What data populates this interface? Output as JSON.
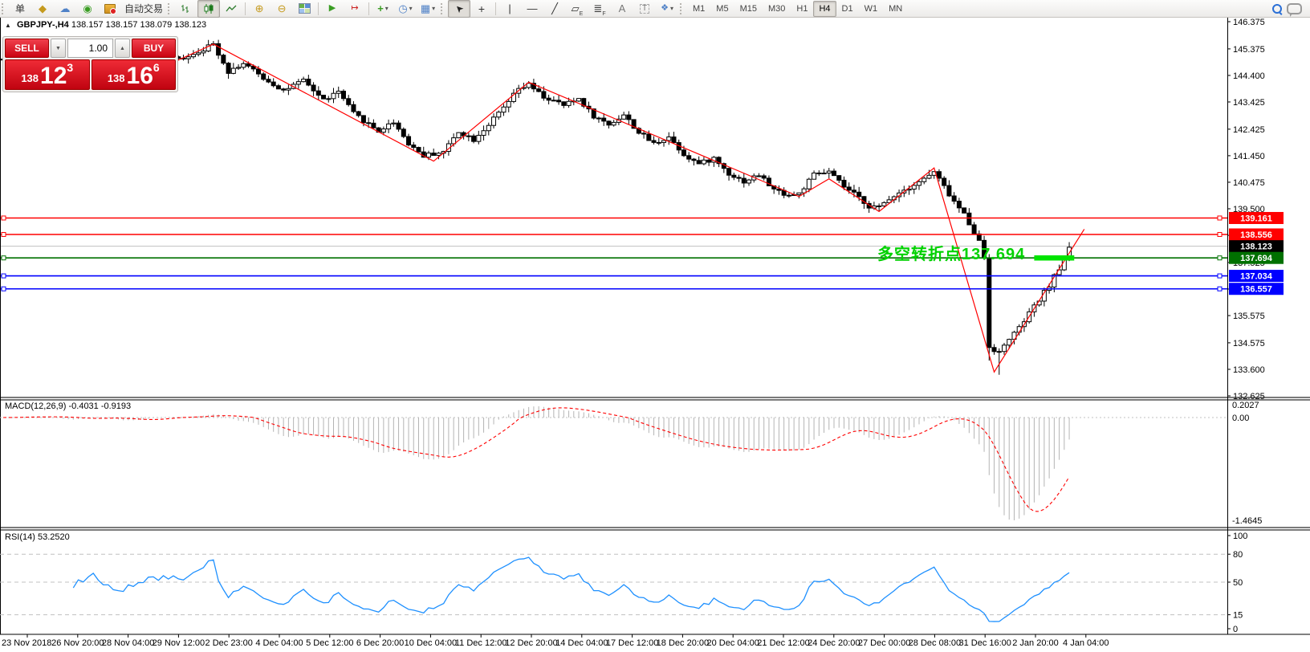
{
  "toolbar": {
    "new_order_label": "单",
    "autotrading_label": "自动交易",
    "timeframes": [
      "M1",
      "M5",
      "M15",
      "M30",
      "H1",
      "H4",
      "D1",
      "W1",
      "MN"
    ],
    "active_timeframe": "H4",
    "icon_glyphs": {
      "metaeditor": "◆",
      "chart_window": "☁",
      "signals": "◉",
      "zoom_in": "⊕",
      "zoom_out": "⊖",
      "autoscroll": "▶",
      "chart_shift": "↦",
      "indicators": "+",
      "periods": "◷",
      "templates": "▦",
      "cursor": "➤",
      "crosshair": "+",
      "vline": "|",
      "hline": "—",
      "trend": "╱",
      "channel": "▱",
      "channel_sub": "E",
      "fib": "≣",
      "fib_sub": "F",
      "text": "A",
      "text_label": "T",
      "shapes": "❖",
      "dropdown": "▾",
      "spin_up": "▲",
      "spin_down": "▼",
      "collapse": "▲"
    }
  },
  "chart_header": {
    "symbol_period": "GBPJPY-,H4",
    "ohlc": "138.157 138.157 138.079 138.123"
  },
  "trade_panel": {
    "sell": "SELL",
    "buy": "BUY",
    "volume": "1.00",
    "sell_price": {
      "small": "138",
      "big": "12",
      "sup": "3"
    },
    "buy_price": {
      "small": "138",
      "big": "16",
      "sup": "6"
    }
  },
  "annotation": {
    "text": "多空转折点137.694",
    "color": "#00D200"
  },
  "chart_data": {
    "type": "candlestick",
    "symbol": "GBPJPY-",
    "period": "H4",
    "bars_total": 214,
    "crash_bar": 197,
    "visible_range": {
      "price_top": 146.375,
      "price_bottom": 132.625
    },
    "y_axis_ticks": [
      "146.375",
      "145.375",
      "144.400",
      "143.425",
      "142.425",
      "141.450",
      "140.475",
      "139.500",
      "138.525",
      "137.525",
      "136.550",
      "135.575",
      "134.575",
      "133.600",
      "132.625"
    ],
    "x_axis_labels": [
      "23 Nov 2018",
      "26 Nov 20:00",
      "28 Nov 04:00",
      "29 Nov 12:00",
      "2 Dec 23:00",
      "4 Dec 04:00",
      "5 Dec 12:00",
      "6 Dec 20:00",
      "10 Dec 04:00",
      "11 Dec 12:00",
      "12 Dec 20:00",
      "14 Dec 04:00",
      "17 Dec 12:00",
      "18 Dec 20:00",
      "20 Dec 04:00",
      "21 Dec 12:00",
      "24 Dec 20:00",
      "27 Dec 00:00",
      "28 Dec 08:00",
      "31 Dec 16:00",
      "2 Jan 20:00",
      "4 Jan 04:00"
    ],
    "horizontal_lines": [
      {
        "label": "139.161",
        "price": 139.161,
        "color": "#FF0000",
        "badge": "#FF0000",
        "role": "resistance"
      },
      {
        "label": "138.556",
        "price": 138.556,
        "color": "#FF0000",
        "badge": "#FF0000",
        "role": "resistance"
      },
      {
        "label": "138.123",
        "price": 138.123,
        "color": "#C0C0C0",
        "badge": "#000000",
        "role": "bid-line"
      },
      {
        "label": "137.694",
        "price": 137.694,
        "color": "#007000",
        "badge": "#007000",
        "role": "pivot"
      },
      {
        "label": "137.034",
        "price": 137.034,
        "color": "#0000FF",
        "badge": "#0000FF",
        "role": "support"
      },
      {
        "label": "136.557",
        "price": 136.557,
        "color": "#0000FF",
        "badge": "#0000FF",
        "role": "support"
      }
    ],
    "current_price": "138.123",
    "highlight_segment": {
      "price": 137.694,
      "color": "#00E400",
      "from_bar": 206,
      "to_bar": 214
    },
    "path_anchors": [
      [
        0,
        144.95
      ],
      [
        6,
        145.2
      ],
      [
        12,
        144.8
      ],
      [
        18,
        145.1
      ],
      [
        24,
        144.75
      ],
      [
        30,
        145.05
      ],
      [
        35,
        145.0
      ],
      [
        38,
        145.2
      ],
      [
        42,
        145.55
      ],
      [
        45,
        144.55
      ],
      [
        48,
        144.85
      ],
      [
        52,
        144.3
      ],
      [
        56,
        143.85
      ],
      [
        60,
        144.2
      ],
      [
        64,
        143.5
      ],
      [
        67,
        143.8
      ],
      [
        70,
        143.0
      ],
      [
        75,
        142.35
      ],
      [
        78,
        142.7
      ],
      [
        81,
        141.9
      ],
      [
        84,
        141.45
      ],
      [
        88,
        141.6
      ],
      [
        91,
        142.35
      ],
      [
        94,
        142.05
      ],
      [
        97,
        142.6
      ],
      [
        100,
        143.2
      ],
      [
        103,
        143.9
      ],
      [
        105,
        144.05
      ],
      [
        108,
        143.6
      ],
      [
        112,
        143.3
      ],
      [
        115,
        143.55
      ],
      [
        118,
        142.9
      ],
      [
        121,
        142.6
      ],
      [
        124,
        142.95
      ],
      [
        127,
        142.3
      ],
      [
        130,
        141.9
      ],
      [
        133,
        142.15
      ],
      [
        136,
        141.5
      ],
      [
        139,
        141.15
      ],
      [
        142,
        141.35
      ],
      [
        145,
        140.8
      ],
      [
        148,
        140.5
      ],
      [
        151,
        140.75
      ],
      [
        154,
        140.2
      ],
      [
        157,
        140.0
      ],
      [
        159,
        140.05
      ],
      [
        162,
        140.75
      ],
      [
        165,
        140.85
      ],
      [
        168,
        140.3
      ],
      [
        171,
        139.9
      ],
      [
        173,
        139.6
      ],
      [
        175,
        139.55
      ],
      [
        178,
        140.0
      ],
      [
        181,
        140.3
      ],
      [
        184,
        140.6
      ],
      [
        186,
        140.85
      ],
      [
        188,
        140.3
      ],
      [
        190,
        139.75
      ],
      [
        192,
        139.3
      ],
      [
        194,
        138.65
      ],
      [
        195,
        138.3
      ],
      [
        196,
        137.7
      ],
      [
        197,
        134.45
      ],
      [
        199,
        134.2
      ],
      [
        201,
        134.75
      ],
      [
        203,
        135.1
      ],
      [
        205,
        135.65
      ],
      [
        207,
        136.15
      ],
      [
        209,
        136.7
      ],
      [
        211,
        137.3
      ],
      [
        212,
        137.7
      ],
      [
        213,
        138.12
      ]
    ],
    "zigzag_points": [
      [
        30,
        144.55
      ],
      [
        42,
        145.55
      ],
      [
        86,
        141.25
      ],
      [
        105,
        144.15
      ],
      [
        159,
        139.95
      ],
      [
        165,
        140.6
      ],
      [
        175,
        139.4
      ],
      [
        186,
        141.0
      ],
      [
        198,
        133.5
      ],
      [
        216,
        138.75
      ]
    ],
    "macd": {
      "title": "MACD(12,26,9)",
      "values": "-0.4031 -0.9193",
      "fast": 12,
      "slow": 26,
      "signal_period": 9,
      "scale_max": "0.2027",
      "scale_zero": "0.00",
      "scale_min": "-1.4645",
      "histogram_color": "#B4B4B4",
      "signal_color": "#FF0000"
    },
    "rsi": {
      "title": "RSI(14)",
      "value": "53.2520",
      "period": 14,
      "levels": [
        80,
        50,
        15
      ],
      "scale_labels": [
        "100",
        "80",
        "50",
        "15",
        "0"
      ],
      "line_color": "#1E90FF"
    }
  }
}
